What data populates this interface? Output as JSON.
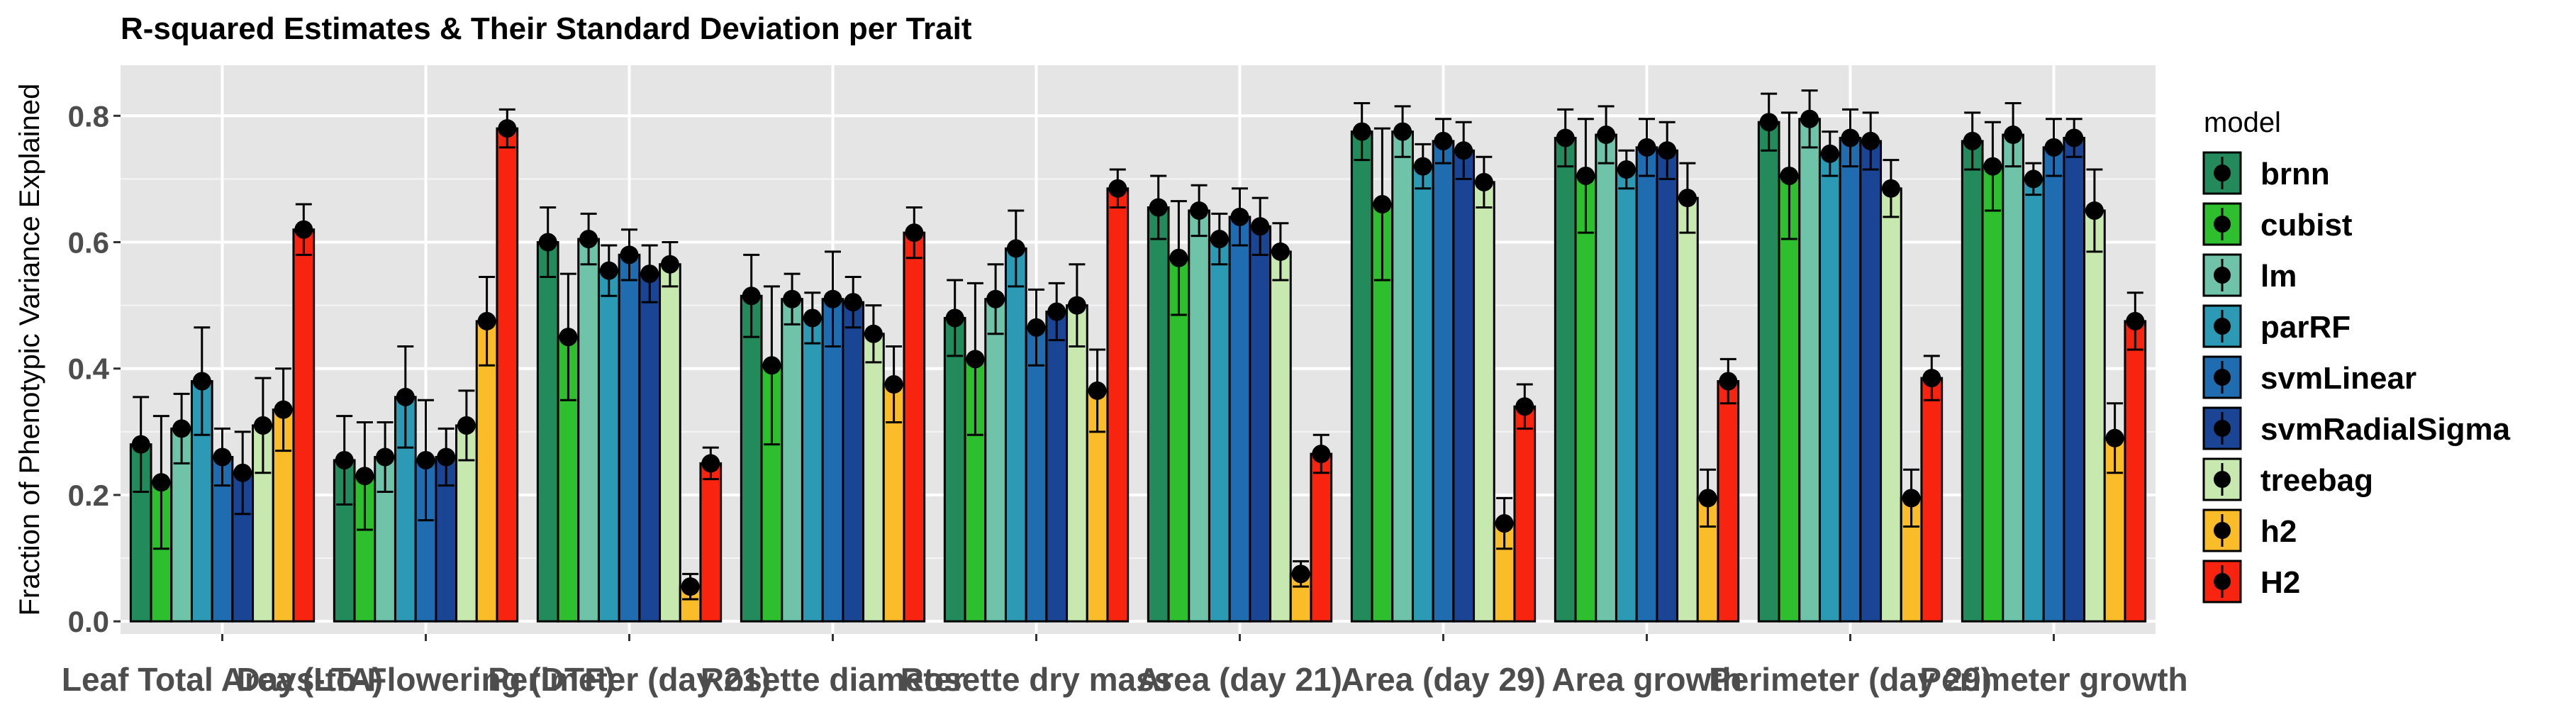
{
  "chart_data": {
    "type": "bar",
    "title": "R-squared Estimates & Their Standard Deviation per Trait",
    "ylabel": "Fraction of Phenotypic Variance Explained",
    "xlabel": "",
    "ylim": [
      -0.02,
      0.88
    ],
    "yticks": [
      "0.0",
      "0.2",
      "0.4",
      "0.6",
      "0.8"
    ],
    "grid": true,
    "legend": {
      "title": "model",
      "position": "right"
    },
    "categories": [
      "Leaf Total Area (LTA)",
      "Days-to-Flowering (DTF)",
      "Perimeter (day 21)",
      "Rosette diameter",
      "Rosette dry mass",
      "Area (day 21)",
      "Area (day 29)",
      "Area growth",
      "Perimeter (day 29)",
      "Perimeter growth"
    ],
    "series": [
      {
        "name": "brnn",
        "color": "#238b5b",
        "values": [
          0.28,
          0.255,
          0.6,
          0.515,
          0.48,
          0.655,
          0.775,
          0.765,
          0.79,
          0.76
        ],
        "sd": [
          0.075,
          0.07,
          0.055,
          0.065,
          0.06,
          0.05,
          0.045,
          0.045,
          0.045,
          0.045
        ]
      },
      {
        "name": "cubist",
        "color": "#2dbf2d",
        "values": [
          0.22,
          0.23,
          0.45,
          0.405,
          0.415,
          0.575,
          0.66,
          0.705,
          0.705,
          0.72
        ],
        "sd": [
          0.105,
          0.085,
          0.1,
          0.125,
          0.12,
          0.09,
          0.12,
          0.09,
          0.1,
          0.07
        ]
      },
      {
        "name": "lm",
        "color": "#6ec3a8",
        "values": [
          0.305,
          0.26,
          0.605,
          0.51,
          0.51,
          0.65,
          0.775,
          0.77,
          0.795,
          0.77
        ],
        "sd": [
          0.055,
          0.055,
          0.04,
          0.04,
          0.055,
          0.04,
          0.04,
          0.045,
          0.045,
          0.05
        ]
      },
      {
        "name": "parRF",
        "color": "#2c9ab5",
        "values": [
          0.38,
          0.355,
          0.555,
          0.48,
          0.59,
          0.605,
          0.72,
          0.715,
          0.74,
          0.7
        ],
        "sd": [
          0.085,
          0.08,
          0.04,
          0.04,
          0.06,
          0.04,
          0.035,
          0.03,
          0.035,
          0.025
        ]
      },
      {
        "name": "svmLinear",
        "color": "#1f6db0",
        "values": [
          0.26,
          0.255,
          0.58,
          0.51,
          0.465,
          0.64,
          0.76,
          0.75,
          0.765,
          0.75
        ],
        "sd": [
          0.045,
          0.095,
          0.04,
          0.075,
          0.06,
          0.045,
          0.035,
          0.045,
          0.045,
          0.045
        ]
      },
      {
        "name": "svmRadialSigma",
        "color": "#1a4594",
        "values": [
          0.235,
          0.26,
          0.55,
          0.505,
          0.49,
          0.625,
          0.745,
          0.745,
          0.76,
          0.765
        ],
        "sd": [
          0.065,
          0.045,
          0.045,
          0.04,
          0.045,
          0.045,
          0.045,
          0.045,
          0.045,
          0.03
        ]
      },
      {
        "name": "treebag",
        "color": "#c7e9b0",
        "values": [
          0.31,
          0.31,
          0.565,
          0.455,
          0.5,
          0.585,
          0.695,
          0.67,
          0.685,
          0.65
        ],
        "sd": [
          0.075,
          0.055,
          0.035,
          0.045,
          0.065,
          0.045,
          0.04,
          0.055,
          0.045,
          0.065
        ]
      },
      {
        "name": "h2",
        "color": "#fbbc29",
        "values": [
          0.335,
          0.475,
          0.055,
          0.375,
          0.365,
          0.075,
          0.155,
          0.195,
          0.195,
          0.29
        ],
        "sd": [
          0.065,
          0.07,
          0.02,
          0.06,
          0.065,
          0.02,
          0.04,
          0.045,
          0.045,
          0.055
        ]
      },
      {
        "name": "H2",
        "color": "#f92410",
        "values": [
          0.62,
          0.78,
          0.25,
          0.615,
          0.685,
          0.265,
          0.34,
          0.38,
          0.385,
          0.475
        ],
        "sd": [
          0.04,
          0.03,
          0.025,
          0.04,
          0.03,
          0.03,
          0.035,
          0.035,
          0.035,
          0.045
        ]
      }
    ]
  }
}
